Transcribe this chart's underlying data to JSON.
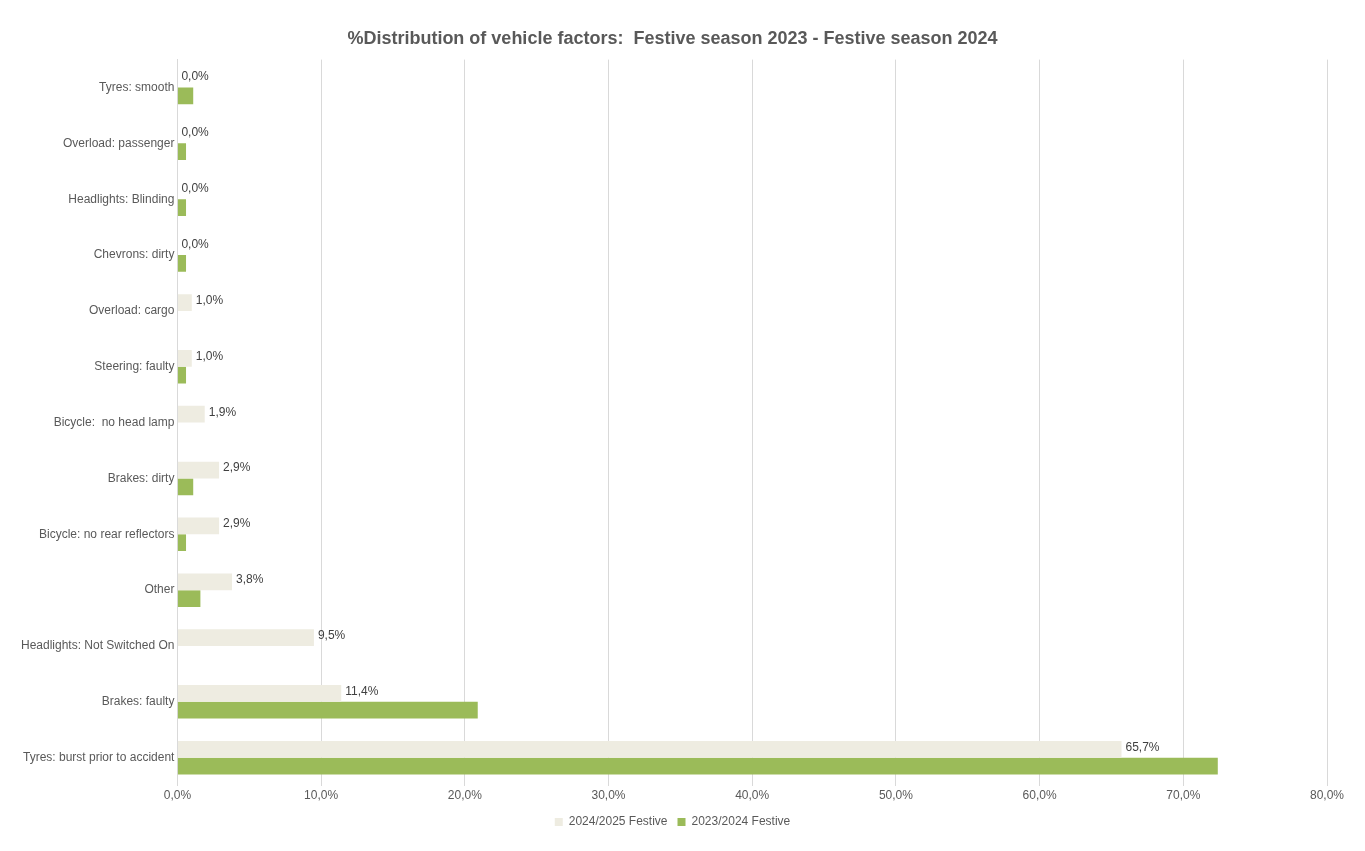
{
  "chart_data": {
    "type": "bar",
    "orientation": "horizontal",
    "title": "%Distribution of vehicle factors:  Festive season 2023 - Festive season 2024",
    "categories": [
      "Tyres: smooth",
      "Overload: passenger",
      "Headlights: Blinding",
      "Chevrons: dirty",
      "Overload: cargo",
      "Steering: faulty",
      "Bicycle:  no head lamp",
      "Brakes: dirty",
      "Bicycle: no rear reflectors",
      "Other",
      "Headlights: Not Switched On",
      "Brakes: faulty",
      "Tyres: burst prior to accident"
    ],
    "series": [
      {
        "name": "2024/2025 Festive",
        "color": "#eeece1",
        "values": [
          0,
          0,
          0,
          0,
          1.0,
          1.0,
          1.9,
          2.9,
          2.9,
          3.8,
          9.5,
          11.4,
          65.7
        ],
        "value_labels": [
          "0,0%",
          "0,0%",
          "0,0%",
          "0,0%",
          "1,0%",
          "1,0%",
          "1,9%",
          "2,9%",
          "2,9%",
          "3,8%",
          "9,5%",
          "11,4%",
          "65,7%"
        ]
      },
      {
        "name": "2023/2024 Festive",
        "color": "#9bbb59",
        "values": [
          1.1,
          0.6,
          0.6,
          0.6,
          null,
          0.6,
          null,
          1.1,
          0.6,
          1.6,
          null,
          20.9,
          72.4
        ]
      }
    ],
    "xlim": [
      0,
      80
    ],
    "xticks": [
      {
        "value": 0,
        "label": "0,0%"
      },
      {
        "value": 10,
        "label": "10,0%"
      },
      {
        "value": 20,
        "label": "20,0%"
      },
      {
        "value": 30,
        "label": "30,0%"
      },
      {
        "value": 40,
        "label": "40,0%"
      },
      {
        "value": 50,
        "label": "50,0%"
      },
      {
        "value": 60,
        "label": "60,0%"
      },
      {
        "value": 70,
        "label": "70,0%"
      },
      {
        "value": 80,
        "label": "80,0%"
      }
    ],
    "grid": "x",
    "legend": "bottom"
  }
}
